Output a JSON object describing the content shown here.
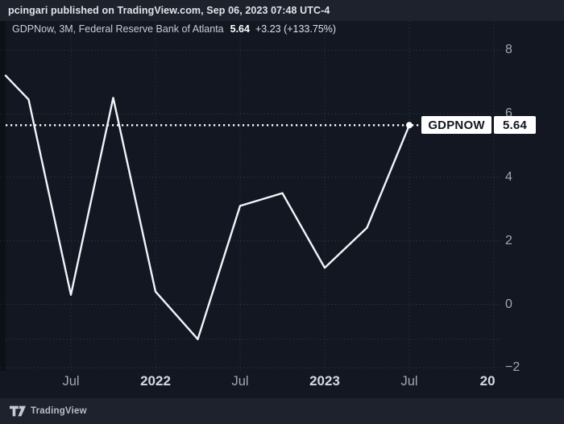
{
  "topbar": {
    "attribution": "pcingari published on TradingView.com, Sep 06, 2023 07:48 UTC-4"
  },
  "legend": {
    "title": "GDPNow, 3M, Federal Reserve Bank of Atlanta",
    "value": "5.64",
    "change": "+3.23 (+133.75%)"
  },
  "price_label": {
    "name": "GDPNOW",
    "value": "5.64"
  },
  "bottombar": {
    "brand": "TradingView"
  },
  "colors": {
    "bar_background": "#1e222d",
    "chart_background": "#131722",
    "line": "#f2f4f7",
    "price_flag_background": "#ffffff",
    "price_flag_text": "#131722",
    "tick_text": "#a2a7b2",
    "year_tick_text": "#d6d9df"
  },
  "chart_data": {
    "type": "line",
    "title": "GDPNow, 3M, Federal Reserve Bank of Atlanta",
    "series": [
      {
        "name": "GDPNOW",
        "x": [
          "Apr 2021",
          "Jul 2021",
          "Oct 2021",
          "Jan 2022",
          "Apr 2022",
          "Jul 2022",
          "Oct 2022",
          "Jan 2023",
          "Apr 2023",
          "Jul 2023"
        ],
        "values": [
          6.45,
          0.3,
          6.5,
          0.4,
          -1.1,
          3.1,
          3.5,
          1.15,
          2.41,
          5.64
        ]
      }
    ],
    "partial_start": {
      "note": "line enters clipped at left pane edge",
      "value": 7.2
    },
    "last": {
      "value": 5.64,
      "change": "+3.23",
      "change_pct": "+133.75%"
    },
    "price_line_value": 5.64,
    "low_guide_value": -1.1,
    "marker_on_last_point": true,
    "y_ticks": [
      8,
      6,
      4,
      2,
      0,
      -2
    ],
    "x_tick_labels": [
      {
        "text": "Jul",
        "bold": false
      },
      {
        "text": "2022",
        "bold": true
      },
      {
        "text": "Jul",
        "bold": false
      },
      {
        "text": "2023",
        "bold": true
      },
      {
        "text": "Jul",
        "bold": false
      },
      {
        "text": "20",
        "bold": true
      }
    ],
    "ylim": [
      -2.1,
      8.9
    ],
    "grid": "dotted",
    "legend_position": "top-left",
    "line_color": "#f2f4f7"
  }
}
